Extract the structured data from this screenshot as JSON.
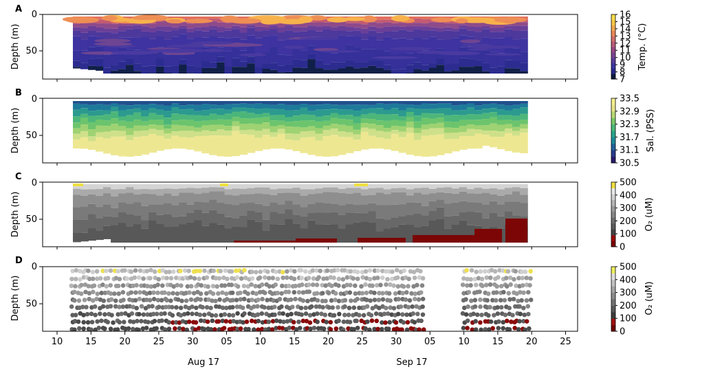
{
  "panels": [
    {
      "letter": "A",
      "ylabel": "Depth (m)",
      "colorbar": {
        "label": "Temp. (°C)",
        "ticks": [
          "16",
          "15",
          "14",
          "13",
          "12",
          "11",
          "10",
          "9",
          "8",
          "7"
        ],
        "colors": [
          "#0d1a3c",
          "#282a8c",
          "#3d35a0",
          "#5a3c9a",
          "#7a4490",
          "#9a4a86",
          "#b85c78",
          "#d06e6a",
          "#e8865a",
          "#f2a850",
          "#f7c64a",
          "#f5dd4a"
        ]
      }
    },
    {
      "letter": "B",
      "ylabel": "Depth (m)",
      "colorbar": {
        "label": "Sal. (PSS)",
        "ticks": [
          "33.5",
          "32.9",
          "32.3",
          "31.7",
          "31.1",
          "30.5"
        ],
        "colors": [
          "#2a1a6a",
          "#2a3c8c",
          "#21629a",
          "#1e8a9a",
          "#2aa38a",
          "#4cb878",
          "#7cc86a",
          "#b8d874",
          "#e8e48a",
          "#f5ee90"
        ]
      }
    },
    {
      "letter": "C",
      "ylabel": "Depth (m)",
      "colorbar": {
        "label": "O₂ (uM)",
        "ticks": [
          "500",
          "400",
          "300",
          "200",
          "100",
          "0"
        ],
        "colors": [
          "#7a0000",
          "#9a0a0a",
          "#444444",
          "#5a5a5a",
          "#6e6e6e",
          "#858585",
          "#9a9a9a",
          "#b4b4b4",
          "#d0d0d0",
          "#e8e8e8",
          "#f0e040"
        ]
      }
    },
    {
      "letter": "D",
      "ylabel": "Depth (m)",
      "colorbar": {
        "label": "O₂ (uM)",
        "ticks": [
          "500",
          "400",
          "300",
          "200",
          "100",
          "0"
        ],
        "colors": [
          "#6e0000",
          "#a01010",
          "#3c3c3c",
          "#585858",
          "#707070",
          "#8a8a8a",
          "#a4a4a4",
          "#c0c0c0",
          "#dedede",
          "#eeee60"
        ]
      }
    }
  ],
  "chart_data": {
    "type": "heatmap",
    "description_axes": {
      "y_ticks": [
        "0",
        "50"
      ],
      "y_range_m": [
        0,
        85
      ],
      "x_tick_labels": [
        "10",
        "15",
        "20",
        "25",
        "30",
        "05",
        "10",
        "15",
        "20",
        "25",
        "30",
        "05",
        "10",
        "15",
        "20",
        "25"
      ],
      "x_month_labels": [
        "Aug 17",
        "Sep 17"
      ]
    }
  }
}
